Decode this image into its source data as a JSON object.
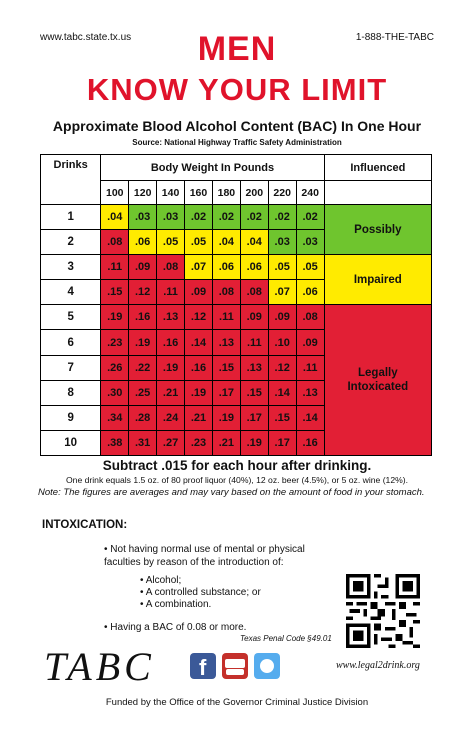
{
  "header": {
    "website": "www.tabc.state.tx.us",
    "phone": "1-888-THE-TABC",
    "title_line1": "MEN",
    "title_line2": "KNOW YOUR LIMIT",
    "subtitle": "Approximate Blood Alcohol Content (BAC) In One Hour",
    "source": "Source: National Highway Traffic Safety Administration"
  },
  "table": {
    "col_drinks": "Drinks",
    "col_weight": "Body Weight In Pounds",
    "col_influenced": "Influenced",
    "weights": [
      "100",
      "120",
      "140",
      "160",
      "180",
      "200",
      "220",
      "240"
    ],
    "rows": [
      {
        "drinks": "1",
        "values": [
          ".04",
          ".03",
          ".03",
          ".02",
          ".02",
          ".02",
          ".02",
          ".02"
        ],
        "colors": [
          "y",
          "g",
          "g",
          "g",
          "g",
          "g",
          "g",
          "g"
        ]
      },
      {
        "drinks": "2",
        "values": [
          ".08",
          ".06",
          ".05",
          ".05",
          ".04",
          ".04",
          ".03",
          ".03"
        ],
        "colors": [
          "r",
          "y",
          "y",
          "y",
          "y",
          "y",
          "g",
          "g"
        ]
      },
      {
        "drinks": "3",
        "values": [
          ".11",
          ".09",
          ".08",
          ".07",
          ".06",
          ".06",
          ".05",
          ".05"
        ],
        "colors": [
          "r",
          "r",
          "r",
          "y",
          "y",
          "y",
          "y",
          "y"
        ]
      },
      {
        "drinks": "4",
        "values": [
          ".15",
          ".12",
          ".11",
          ".09",
          ".08",
          ".08",
          ".07",
          ".06"
        ],
        "colors": [
          "r",
          "r",
          "r",
          "r",
          "r",
          "r",
          "y",
          "y"
        ]
      },
      {
        "drinks": "5",
        "values": [
          ".19",
          ".16",
          ".13",
          ".12",
          ".11",
          ".09",
          ".09",
          ".08"
        ],
        "colors": [
          "r",
          "r",
          "r",
          "r",
          "r",
          "r",
          "r",
          "r"
        ]
      },
      {
        "drinks": "6",
        "values": [
          ".23",
          ".19",
          ".16",
          ".14",
          ".13",
          ".11",
          ".10",
          ".09"
        ],
        "colors": [
          "r",
          "r",
          "r",
          "r",
          "r",
          "r",
          "r",
          "r"
        ]
      },
      {
        "drinks": "7",
        "values": [
          ".26",
          ".22",
          ".19",
          ".16",
          ".15",
          ".13",
          ".12",
          ".11"
        ],
        "colors": [
          "r",
          "r",
          "r",
          "r",
          "r",
          "r",
          "r",
          "r"
        ]
      },
      {
        "drinks": "8",
        "values": [
          ".30",
          ".25",
          ".21",
          ".19",
          ".17",
          ".15",
          ".14",
          ".13"
        ],
        "colors": [
          "r",
          "r",
          "r",
          "r",
          "r",
          "r",
          "r",
          "r"
        ]
      },
      {
        "drinks": "9",
        "values": [
          ".34",
          ".28",
          ".24",
          ".21",
          ".19",
          ".17",
          ".15",
          ".14"
        ],
        "colors": [
          "r",
          "r",
          "r",
          "r",
          "r",
          "r",
          "r",
          "r"
        ]
      },
      {
        "drinks": "10",
        "values": [
          ".38",
          ".31",
          ".27",
          ".23",
          ".21",
          ".19",
          ".17",
          ".16"
        ],
        "colors": [
          "r",
          "r",
          "r",
          "r",
          "r",
          "r",
          "r",
          "r"
        ]
      }
    ],
    "status_possibly": "Possibly",
    "status_impaired": "Impaired",
    "status_legally_line1": "Legally",
    "status_legally_line2": "Intoxicated",
    "colors": {
      "y": "#ffeb00",
      "g": "#6fc52e",
      "r": "#e21f35"
    }
  },
  "footer": {
    "subtract": "Subtract .015 for each hour after drinking.",
    "one_drink": "One drink equals 1.5 oz. of 80 proof liquor (40%), 12 oz. beer (4.5%), or 5 oz. wine (12%).",
    "note": "Note: The figures are averages and may vary based on the amount of food in your stomach.",
    "intox_heading": "INTOXICATION:",
    "bullet1": "• Not having normal use of mental or physical faculties by reason of the introduction of:",
    "sub_items": [
      "• Alcohol;",
      "• A controlled substance; or",
      "• A combination."
    ],
    "bullet2": "• Having a BAC of 0.08 or more.",
    "penal_code": "Texas Penal Code §49.01",
    "logo_text": "TABC",
    "website2": "www.legal2drink.org",
    "funded": "Funded by the Office of the Governor Criminal Justice Division",
    "icons": [
      "facebook-icon",
      "youtube-icon",
      "twitter-icon",
      "qr-code-icon"
    ]
  }
}
